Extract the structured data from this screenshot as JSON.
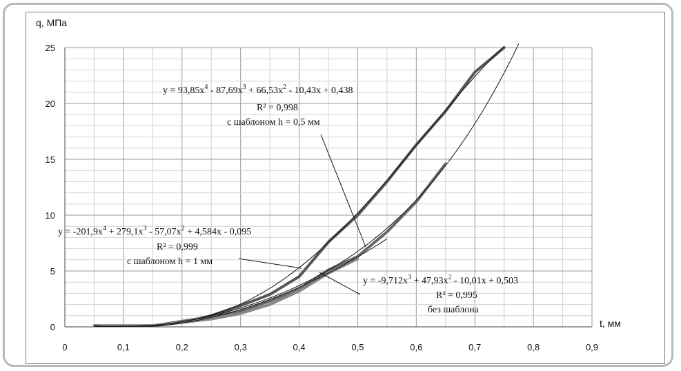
{
  "chart_data": {
    "type": "line",
    "xlabel": "t, мм",
    "ylabel": "q, МПа",
    "xlim": [
      0,
      0.9
    ],
    "ylim": [
      0,
      25
    ],
    "x_ticks": [
      "0",
      "0,1",
      "0,2",
      "0,3",
      "0,4",
      "0,5",
      "0,6",
      "0,7",
      "0,8",
      "0,9"
    ],
    "y_ticks": [
      "0",
      "5",
      "10",
      "15",
      "20",
      "25"
    ],
    "grid": true,
    "series": [
      {
        "name": "с шаблоном h = 0,5 мм",
        "kind": "measured",
        "color": "#555555",
        "x": [
          0.05,
          0.15,
          0.2,
          0.25,
          0.3,
          0.35,
          0.4,
          0.45,
          0.5,
          0.55,
          0.6,
          0.65,
          0.7,
          0.75
        ],
        "y": [
          0.1,
          0.1,
          0.4,
          1.0,
          1.9,
          2.9,
          4.5,
          7.6,
          10.0,
          13.0,
          16.3,
          19.3,
          22.8,
          25.0
        ]
      },
      {
        "name": "с шаблоном h = 1 мм",
        "kind": "measured",
        "color": "#666666",
        "x": [
          0.05,
          0.15,
          0.2,
          0.25,
          0.3,
          0.35,
          0.4,
          0.45,
          0.5,
          0.55,
          0.6,
          0.65
        ],
        "y": [
          0.1,
          0.1,
          0.5,
          0.9,
          1.4,
          2.3,
          3.4,
          5.1,
          6.3,
          8.5,
          11.2,
          14.6
        ]
      },
      {
        "name": "без шаблона",
        "kind": "measured",
        "color": "#888888",
        "x": [
          0.05,
          0.15,
          0.2,
          0.25,
          0.3,
          0.35,
          0.4,
          0.45,
          0.5
        ],
        "y": [
          0.1,
          0.1,
          0.4,
          0.7,
          1.2,
          2.0,
          3.2,
          4.8,
          6.1
        ]
      }
    ],
    "trendlines": [
      {
        "kind": "poly",
        "coefficients_high_to_low": [
          93.85,
          -87.69,
          66.53,
          -10.43,
          0.438
        ],
        "x_range": [
          0.05,
          0.78
        ],
        "color": "#111111"
      },
      {
        "kind": "poly",
        "coefficients_high_to_low": [
          -201.9,
          279.1,
          -57.07,
          4.584,
          -0.095
        ],
        "x_range": [
          0.05,
          0.8
        ],
        "color": "#111111"
      },
      {
        "kind": "poly",
        "coefficients_high_to_low": [
          -9.712,
          47.93,
          -10.01,
          0.503
        ],
        "x_range": [
          0.05,
          0.55
        ],
        "color": "#111111"
      }
    ],
    "annotations": [
      {
        "equation": {
          "pre": "y = 93,85x",
          "sup1": "4",
          "mid1": " - 87,69x",
          "sup2": "3",
          "mid2": " + 66,53x",
          "sup3": "2",
          "post": " - 10,43x + 0,438"
        },
        "r2": "R² = 0,998",
        "label": "с шаблоном h = 0,5 мм"
      },
      {
        "equation": {
          "pre": "y = -201,9x",
          "sup1": "4",
          "mid1": " + 279,1x",
          "sup2": "3",
          "mid2": " - 57,07x",
          "sup3": "2",
          "post": " + 4,584x - 0,095"
        },
        "r2": "R² = 0,999",
        "label": "с шаблоном h = 1 мм"
      },
      {
        "equation": {
          "pre": "y = -9,712x",
          "sup1": "3",
          "mid1": " + 47,93x",
          "sup2": "2",
          "mid2": " - 10,01x + 0,503",
          "sup3": "",
          "post": ""
        },
        "r2": "R² = 0,995",
        "label": "без шаблона"
      }
    ]
  }
}
